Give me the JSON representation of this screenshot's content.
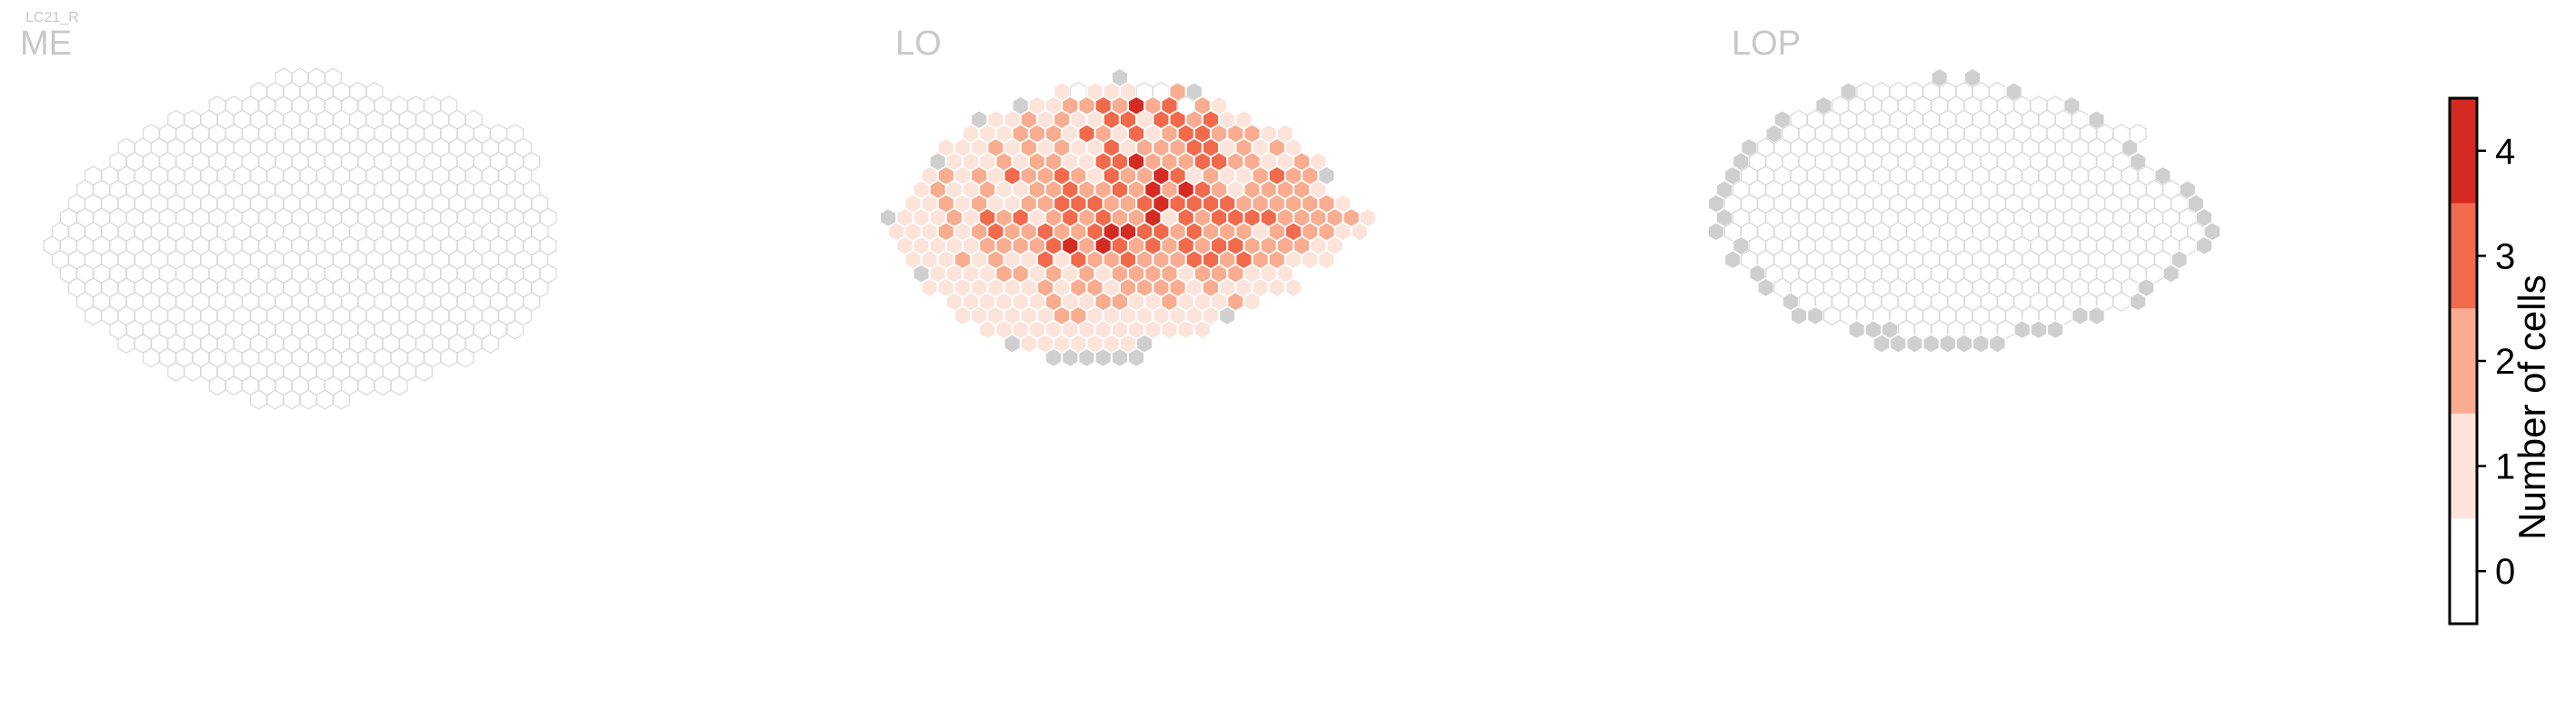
{
  "chart_data": {
    "type": "heatmap",
    "figure_label": "LC21_R",
    "panels": [
      {
        "name": "ME",
        "values_description": "",
        "rows": [
          "...............................",
          "..............0000.............",
          ".............00000000..........",
          "..........000000000000000......",
          "........0000000000000000000....",
          "......00000000000000000000000..",
          ".....0000000000000000000000000.",
          "....00000000000000000000000000.",
          "...000000000000000000000000000.",
          "..0000000000000000000000000000.",
          "..00000000000000000000000000000",
          ".000000000000000000000000000000",
          ".000000000000000000000000000000",
          "0000000000000000000000000000000",
          ".000000000000000000000000000000",
          ".000000000000000000000000000000",
          "..00000000000000000000000000000",
          "..0000000000000000000000000000.",
          "...000000000000000000000000000.",
          "....0000000000000000000000000..",
          ".....00000000000000000000000...",
          "......00000000000000000000.....",
          "........0000000000000000.......",
          "..........000000000000.........",
          ".............000000............"
        ]
      },
      {
        "name": "LO",
        "values_description": "",
        "rows": [
          "...............................",
          "..............x................",
          "...........10111002x...........",
          "........x112232423021..........",
          "......x1121211331332311........",
          ".....11122213213123322211......",
          "....1112121211312223312121.....",
          "...x11121221133422233221121....",
          "...121213223213224312112322x...",
          "..1211211223223242432122221....",
          "..112121122333223433332222221..",
          "x11121323123232241323333222221.",
          ".11121232232234433232221232211.",
          ".111112222342432323233222211...",
          "..11121211313223222332322111...",
          "..x1111221212122221222111......",
          "...11111112122122221211111.....",
          "....1111112112211211121.......",
          ".....1111112211111111x.........",
          "......11111111111111...........",
          "........x1111111x..............",
          "..........xxxxxx...............",
          "...............................",
          "...............................",
          "..............................."
        ]
      },
      {
        "name": "LOP",
        "values_description": "",
        "rows": [
          "...............................",
          ".............x.x...............",
          "........x000000000x............",
          "......x00000000000000x.........",
          "....x000000000000000000x.......",
          "...x0000000000000000000000.....",
          "..x0000000000000000000000x.....",
          ".x00000000000000000000000x.....",
          ".x0000000000000000000000000x...",
          "x000000000000000000000000000x..",
          "x0000000000000000000000000000x.",
          "x0000000000000000000000000000x.",
          "x00000000000000000000000000000x",
          ".x000000000000000000000000000x.",
          ".x00000000000000000000000000x..",
          "..x000000000000000000000000x...",
          "...x0000000000000000000000x....",
          "....x00000000000000000000x.....",
          ".....xx000000000000000xx.......",
          "........xxx0000000xxx..........",
          "..........xxxxxxxx.............",
          "...............................",
          "...............................",
          "...............................",
          "..............................."
        ]
      }
    ],
    "colorbar": {
      "label": "Number of cells",
      "ticks": [
        "0",
        "1",
        "2",
        "3",
        "4"
      ],
      "min": -0.5,
      "max": 4.5
    },
    "colors": {
      "0": "#ffffff",
      "1": "#fce4da",
      "2": "#f9ac8f",
      "3": "#f16a4c",
      "4": "#d52a22",
      "x": "#cfcfcf",
      "hex_stroke_empty": "#d9d9d9",
      "hex_stroke_filled": "#ffffff",
      "panel_title": "#c8c8c8"
    }
  }
}
